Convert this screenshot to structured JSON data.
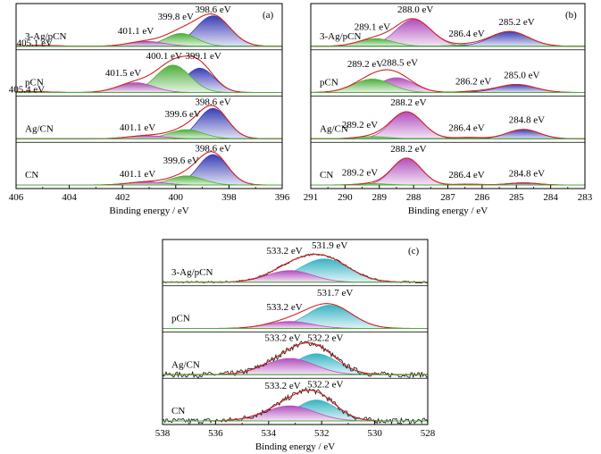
{
  "figure": {
    "x_axis_label": "Binding energy / eV"
  },
  "colors": {
    "N1s": "#3a3fb5",
    "C1s": "#3a3fb5",
    "N_high": "#a24fb0",
    "green": "#4caf3a",
    "envelope": "#d42020",
    "teal": "#38b4c4",
    "purple": "#b14fbd",
    "baseline": "#4caf3a"
  },
  "chart_data": [
    {
      "type": "area",
      "panel": "(a)",
      "title": "",
      "xlabel": "Binding energy / eV",
      "ylabel": "",
      "xlim": [
        406,
        396
      ],
      "x_reversed": true,
      "ticks": [
        "406",
        "404",
        "402",
        "400",
        "398",
        "396"
      ],
      "tick_values": [
        406,
        404,
        402,
        400,
        398,
        396
      ],
      "grid": false,
      "legend": "none",
      "samples": [
        {
          "name": "3-Ag/pCN",
          "peaks": [
            {
              "center": 398.6,
              "fwhm": 1.5,
              "height": 1.0,
              "color": "#3a3fb5"
            },
            {
              "center": 399.8,
              "fwhm": 1.4,
              "height": 0.42,
              "color": "#4caf3a"
            },
            {
              "center": 401.1,
              "fwhm": 1.6,
              "height": 0.16,
              "color": "#a24fb0"
            },
            {
              "center": 405.1,
              "fwhm": 1.5,
              "height": 0.03,
              "color": "#3a3fb5"
            }
          ],
          "labels": [
            {
              "text": "398.6 eV",
              "x": 398.6
            },
            {
              "text": "399.8 eV",
              "x": 399.8
            },
            {
              "text": "401.1 eV",
              "x": 401.1
            },
            {
              "text": "405.1 eV",
              "x": 405.1
            }
          ]
        },
        {
          "name": "pCN",
          "peaks": [
            {
              "center": 399.1,
              "fwhm": 1.3,
              "height": 0.8,
              "color": "#3a3fb5"
            },
            {
              "center": 400.1,
              "fwhm": 1.5,
              "height": 0.9,
              "color": "#4caf3a"
            },
            {
              "center": 401.5,
              "fwhm": 1.6,
              "height": 0.32,
              "color": "#a24fb0"
            },
            {
              "center": 405.4,
              "fwhm": 1.5,
              "height": 0.03,
              "color": "#3a3fb5"
            }
          ],
          "labels": [
            {
              "text": "399.1 eV",
              "x": 399.1
            },
            {
              "text": "400.1 eV",
              "x": 400.1
            },
            {
              "text": "401.5 eV",
              "x": 401.5
            },
            {
              "text": "405.4 eV",
              "x": 405.4
            }
          ]
        },
        {
          "name": "Ag/CN",
          "peaks": [
            {
              "center": 398.6,
              "fwhm": 1.3,
              "height": 1.0,
              "color": "#3a3fb5"
            },
            {
              "center": 399.6,
              "fwhm": 1.5,
              "height": 0.3,
              "color": "#4caf3a"
            },
            {
              "center": 401.1,
              "fwhm": 1.6,
              "height": 0.1,
              "color": "#a24fb0"
            }
          ],
          "labels": [
            {
              "text": "398.6 eV",
              "x": 398.6
            },
            {
              "text": "399.6 eV",
              "x": 399.6
            },
            {
              "text": "401.1 eV",
              "x": 401.1
            }
          ]
        },
        {
          "name": "CN",
          "peaks": [
            {
              "center": 398.6,
              "fwhm": 1.3,
              "height": 1.0,
              "color": "#3a3fb5"
            },
            {
              "center": 399.6,
              "fwhm": 1.5,
              "height": 0.3,
              "color": "#4caf3a"
            },
            {
              "center": 401.1,
              "fwhm": 1.6,
              "height": 0.1,
              "color": "#a24fb0"
            }
          ],
          "labels": [
            {
              "text": "398.6 eV",
              "x": 398.6
            },
            {
              "text": "399.6 eV",
              "x": 399.6
            },
            {
              "text": "401.1 eV",
              "x": 401.1
            }
          ]
        }
      ]
    },
    {
      "type": "area",
      "panel": "(b)",
      "title": "",
      "xlabel": "Binding energy / eV",
      "ylabel": "",
      "xlim": [
        291,
        283
      ],
      "x_reversed": true,
      "ticks": [
        "291",
        "290",
        "289",
        "288",
        "287",
        "286",
        "285",
        "284",
        "283"
      ],
      "tick_values": [
        291,
        290,
        289,
        288,
        287,
        286,
        285,
        284,
        283
      ],
      "grid": false,
      "legend": "none",
      "samples": [
        {
          "name": "3-Ag/pCN",
          "peaks": [
            {
              "center": 288.0,
              "fwhm": 1.2,
              "height": 1.0,
              "color": "#b14fbd"
            },
            {
              "center": 289.1,
              "fwhm": 1.2,
              "height": 0.28,
              "color": "#4caf3a"
            },
            {
              "center": 286.4,
              "fwhm": 1.1,
              "height": 0.06,
              "color": "#4caf3a"
            },
            {
              "center": 285.2,
              "fwhm": 1.3,
              "height": 0.55,
              "color": "#3a3fb5"
            }
          ],
          "labels": [
            {
              "text": "289.1 eV",
              "x": 289.1
            },
            {
              "text": "288.0 eV",
              "x": 288.0
            },
            {
              "text": "286.4 eV",
              "x": 286.4
            },
            {
              "text": "285.2 eV",
              "x": 285.2
            }
          ]
        },
        {
          "name": "pCN",
          "peaks": [
            {
              "center": 288.5,
              "fwhm": 1.2,
              "height": 0.55,
              "color": "#b14fbd"
            },
            {
              "center": 289.2,
              "fwhm": 1.3,
              "height": 0.5,
              "color": "#4caf3a"
            },
            {
              "center": 286.2,
              "fwhm": 1.0,
              "height": 0.04,
              "color": "#4caf3a"
            },
            {
              "center": 285.0,
              "fwhm": 1.3,
              "height": 0.3,
              "color": "#3a3fb5"
            }
          ],
          "labels": [
            {
              "text": "289.2 eV",
              "x": 289.2
            },
            {
              "text": "288.5 eV",
              "x": 288.5
            },
            {
              "text": "286.2 eV",
              "x": 286.2
            },
            {
              "text": "285.0 eV",
              "x": 285.0
            }
          ]
        },
        {
          "name": "Ag/CN",
          "peaks": [
            {
              "center": 288.2,
              "fwhm": 1.1,
              "height": 1.0,
              "color": "#b14fbd"
            },
            {
              "center": 289.2,
              "fwhm": 1.1,
              "height": 0.08,
              "color": "#4caf3a"
            },
            {
              "center": 286.4,
              "fwhm": 1.0,
              "height": 0.05,
              "color": "#4caf3a"
            },
            {
              "center": 284.8,
              "fwhm": 1.1,
              "height": 0.35,
              "color": "#3a3fb5"
            }
          ],
          "labels": [
            {
              "text": "289.2 eV",
              "x": 289.2
            },
            {
              "text": "288.2 eV",
              "x": 288.2
            },
            {
              "text": "286.4 eV",
              "x": 286.4
            },
            {
              "text": "284.8 eV",
              "x": 284.8
            }
          ]
        },
        {
          "name": "CN",
          "peaks": [
            {
              "center": 288.2,
              "fwhm": 1.0,
              "height": 1.0,
              "color": "#b14fbd"
            },
            {
              "center": 289.2,
              "fwhm": 1.0,
              "height": 0.05,
              "color": "#4caf3a"
            },
            {
              "center": 286.4,
              "fwhm": 1.0,
              "height": 0.03,
              "color": "#4caf3a"
            },
            {
              "center": 284.8,
              "fwhm": 1.0,
              "height": 0.08,
              "color": "#3a3fb5"
            }
          ],
          "labels": [
            {
              "text": "289.2 eV",
              "x": 289.2
            },
            {
              "text": "288.2 eV",
              "x": 288.2
            },
            {
              "text": "286.4 eV",
              "x": 286.4
            },
            {
              "text": "284.8 eV",
              "x": 284.8
            }
          ]
        }
      ]
    },
    {
      "type": "area",
      "panel": "(c)",
      "title": "",
      "xlabel": "Binding energy / eV",
      "ylabel": "",
      "xlim": [
        538,
        528
      ],
      "x_reversed": true,
      "ticks": [
        "538",
        "536",
        "534",
        "532",
        "530",
        "528"
      ],
      "tick_values": [
        538,
        536,
        534,
        532,
        530,
        528
      ],
      "grid": false,
      "legend": "none",
      "samples": [
        {
          "name": "3-Ag/pCN",
          "noise": 0.04,
          "peaks": [
            {
              "center": 531.9,
              "fwhm": 2.2,
              "height": 1.0,
              "color": "#38b4c4"
            },
            {
              "center": 533.2,
              "fwhm": 2.0,
              "height": 0.5,
              "color": "#b14fbd"
            }
          ],
          "labels": [
            {
              "text": "533.2 eV",
              "x": 533.2
            },
            {
              "text": "531.9 eV",
              "x": 531.9
            }
          ]
        },
        {
          "name": "pCN",
          "noise": 0.0,
          "peaks": [
            {
              "center": 531.7,
              "fwhm": 2.0,
              "height": 1.0,
              "color": "#38b4c4"
            },
            {
              "center": 533.2,
              "fwhm": 2.0,
              "height": 0.3,
              "color": "#b14fbd"
            }
          ],
          "labels": [
            {
              "text": "533.2 eV",
              "x": 533.2
            },
            {
              "text": "531.7 eV",
              "x": 531.7
            }
          ]
        },
        {
          "name": "Ag/CN",
          "noise": 0.12,
          "peaks": [
            {
              "center": 532.2,
              "fwhm": 1.9,
              "height": 0.9,
              "color": "#38b4c4"
            },
            {
              "center": 533.2,
              "fwhm": 2.2,
              "height": 0.7,
              "color": "#b14fbd"
            }
          ],
          "labels": [
            {
              "text": "533.2 eV",
              "x": 533.2
            },
            {
              "text": "532.2 eV",
              "x": 532.2
            }
          ]
        },
        {
          "name": "CN",
          "noise": 0.12,
          "peaks": [
            {
              "center": 532.2,
              "fwhm": 1.8,
              "height": 0.9,
              "color": "#38b4c4"
            },
            {
              "center": 533.2,
              "fwhm": 2.2,
              "height": 0.65,
              "color": "#b14fbd"
            }
          ],
          "labels": [
            {
              "text": "533.2 eV",
              "x": 533.2
            },
            {
              "text": "532.2 eV",
              "x": 532.2
            }
          ]
        }
      ]
    }
  ]
}
